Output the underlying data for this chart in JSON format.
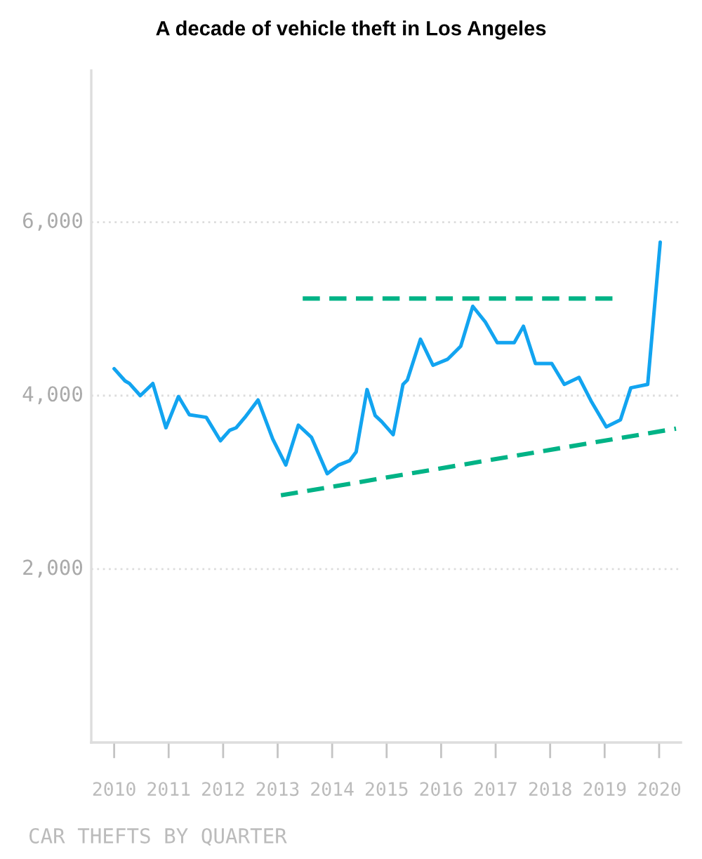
{
  "chart_data": {
    "type": "line",
    "title": "A decade of vehicle theft in Los Angeles",
    "x": [
      2010.0,
      2010.2,
      2010.28,
      2010.48,
      2010.71,
      2010.95,
      2011.18,
      2011.38,
      2011.69,
      2011.95,
      2012.12,
      2012.24,
      2012.4,
      2012.64,
      2012.91,
      2013.15,
      2013.38,
      2013.62,
      2013.91,
      2014.12,
      2014.32,
      2014.44,
      2014.64,
      2014.79,
      2014.91,
      2015.12,
      2015.3,
      2015.38,
      2015.62,
      2015.85,
      2016.12,
      2016.36,
      2016.58,
      2016.81,
      2017.03,
      2017.34,
      2017.51,
      2017.73,
      2018.03,
      2018.26,
      2018.53,
      2018.75,
      2019.03,
      2019.29,
      2019.48,
      2019.79,
      2020.02
    ],
    "series": [
      {
        "color": "#12a4f0",
        "values": [
          4310,
          4170,
          4140,
          4000,
          4140,
          3630,
          3990,
          3780,
          3750,
          3480,
          3600,
          3630,
          3750,
          3950,
          3500,
          3200,
          3660,
          3520,
          3100,
          3200,
          3250,
          3350,
          4070,
          3770,
          3700,
          3550,
          4130,
          4180,
          4650,
          4350,
          4420,
          4570,
          5030,
          4850,
          4610,
          4610,
          4800,
          4370,
          4370,
          4130,
          4210,
          3940,
          3640,
          3720,
          4090,
          4130,
          5770
        ]
      },
      {
        "color": "#00b386",
        "line_style": "dashed",
        "x": [
          2013.46,
          2019.18
        ],
        "values": [
          5120,
          5120
        ]
      },
      {
        "color": "#00b386",
        "line_style": "dashed",
        "x": [
          2013.06,
          2020.31
        ],
        "values": [
          2850,
          3620
        ]
      }
    ],
    "xlim": [
      2009.58,
      2020.4
    ],
    "xticks": [
      2010,
      2011,
      2012,
      2013,
      2014,
      2015,
      2016,
      2017,
      2018,
      2019,
      2020
    ],
    "ylim": [
      0,
      7750
    ],
    "yticks": [
      {
        "value": 2000,
        "label": "2,000"
      },
      {
        "value": 4000,
        "label": "4,000"
      },
      {
        "value": 6000,
        "label": "6,000"
      }
    ],
    "grid": "y",
    "line_style": "solid",
    "annotations": [
      "CAR THEFTS BY QUARTER"
    ]
  }
}
